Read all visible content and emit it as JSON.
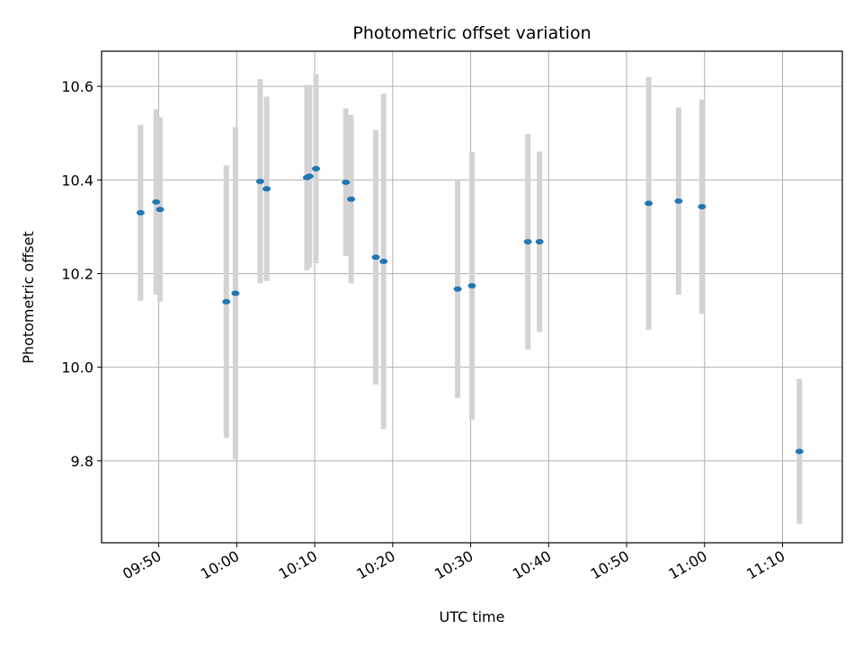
{
  "chart_data": {
    "type": "scatter",
    "title": "Photometric offset variation",
    "xlabel": "UTC time",
    "ylabel": "Photometric offset",
    "x_unit": "UTC time (HH:MM)",
    "xlim": [
      "09:42:40",
      "11:17:40"
    ],
    "ylim": [
      9.625,
      10.675
    ],
    "x_ticks": [
      "09:50",
      "10:00",
      "10:10",
      "10:20",
      "10:30",
      "10:40",
      "10:50",
      "11:00",
      "11:10"
    ],
    "y_ticks": [
      9.8,
      10.0,
      10.2,
      10.4,
      10.6
    ],
    "y_tick_labels": [
      "9.8",
      "10.0",
      "10.2",
      "10.4",
      "10.6"
    ],
    "grid": true,
    "colors": {
      "marker": "#1f77b4",
      "errorbar": "#d3d3d3",
      "grid": "#b0b0b0"
    },
    "points": [
      {
        "t": "09:47:40",
        "y": 10.33,
        "err": 0.188
      },
      {
        "t": "09:49:40",
        "y": 10.353,
        "err": 0.198
      },
      {
        "t": "09:50:10",
        "y": 10.337,
        "err": 0.197
      },
      {
        "t": "09:58:40",
        "y": 10.14,
        "err": 0.291
      },
      {
        "t": "09:59:50",
        "y": 10.158,
        "err": 0.355
      },
      {
        "t": "10:03:00",
        "y": 10.397,
        "err": 0.218
      },
      {
        "t": "10:03:50",
        "y": 10.381,
        "err": 0.197
      },
      {
        "t": "10:09:00",
        "y": 10.405,
        "err": 0.198
      },
      {
        "t": "10:09:20",
        "y": 10.408,
        "err": 0.195
      },
      {
        "t": "10:10:10",
        "y": 10.424,
        "err": 0.202
      },
      {
        "t": "10:14:00",
        "y": 10.395,
        "err": 0.158
      },
      {
        "t": "10:14:40",
        "y": 10.359,
        "err": 0.18
      },
      {
        "t": "10:17:50",
        "y": 10.235,
        "err": 0.272
      },
      {
        "t": "10:18:50",
        "y": 10.226,
        "err": 0.358
      },
      {
        "t": "10:28:20",
        "y": 10.167,
        "err": 0.233
      },
      {
        "t": "10:30:10",
        "y": 10.174,
        "err": 0.286
      },
      {
        "t": "10:37:20",
        "y": 10.268,
        "err": 0.23
      },
      {
        "t": "10:38:50",
        "y": 10.268,
        "err": 0.193
      },
      {
        "t": "10:52:50",
        "y": 10.35,
        "err": 0.27
      },
      {
        "t": "10:56:40",
        "y": 10.355,
        "err": 0.2
      },
      {
        "t": "10:59:40",
        "y": 10.343,
        "err": 0.229
      },
      {
        "t": "11:12:10",
        "y": 9.82,
        "err": 0.155
      }
    ]
  }
}
